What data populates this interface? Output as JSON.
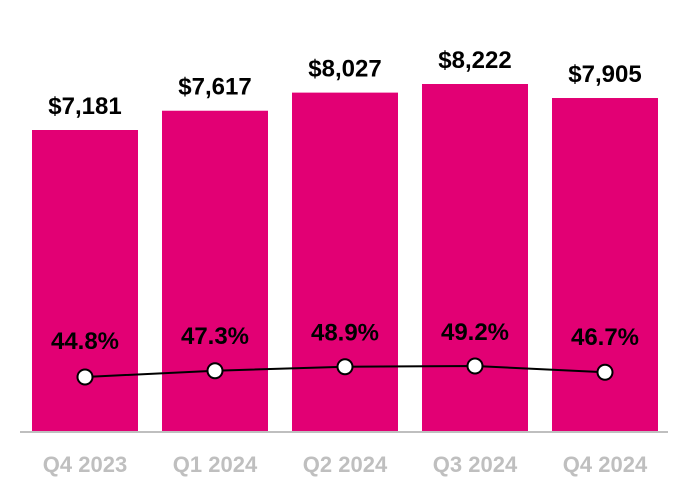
{
  "chart_data": {
    "type": "bar",
    "title": "",
    "xlabel": "",
    "ylabel": "",
    "categories": [
      "Q4 2023",
      "Q1 2024",
      "Q2 2024",
      "Q3 2024",
      "Q4 2024"
    ],
    "series": [
      {
        "type": "bar",
        "values": [
          7181,
          7617,
          8027,
          8222,
          7905
        ],
        "labels": [
          "$7,181",
          "$7,617",
          "$8,027",
          "$8,222",
          "$7,905"
        ],
        "color": "#e20074"
      },
      {
        "type": "line",
        "values": [
          44.8,
          47.3,
          48.9,
          49.2,
          46.7
        ],
        "labels": [
          "44.8%",
          "47.3%",
          "48.9%",
          "49.2%",
          "46.7%"
        ],
        "color": "#000000"
      }
    ],
    "legend": "none",
    "grid": false
  }
}
